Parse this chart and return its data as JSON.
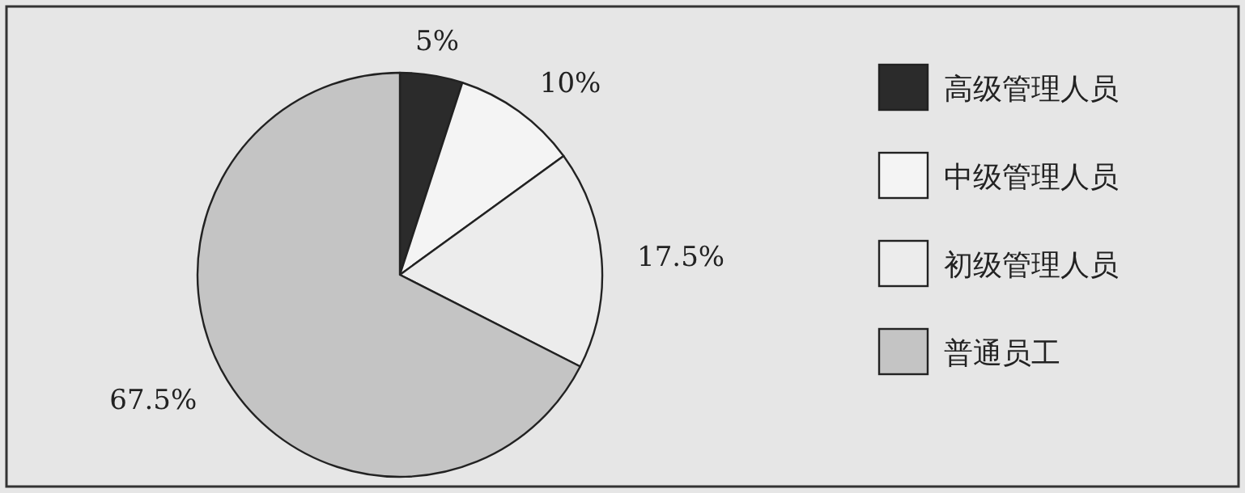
{
  "chart_data": {
    "type": "pie",
    "categories": [
      "高级管理人员",
      "中级管理人员",
      "初级管理人员",
      "普通员工"
    ],
    "values": [
      5,
      10,
      17.5,
      67.5
    ],
    "colors": [
      "#2b2b2b",
      "#f4f4f4",
      "#ececec",
      "#c4c4c4"
    ],
    "value_labels": [
      "5%",
      "10%",
      "17.5%",
      "67.5%"
    ],
    "legend": "right"
  }
}
